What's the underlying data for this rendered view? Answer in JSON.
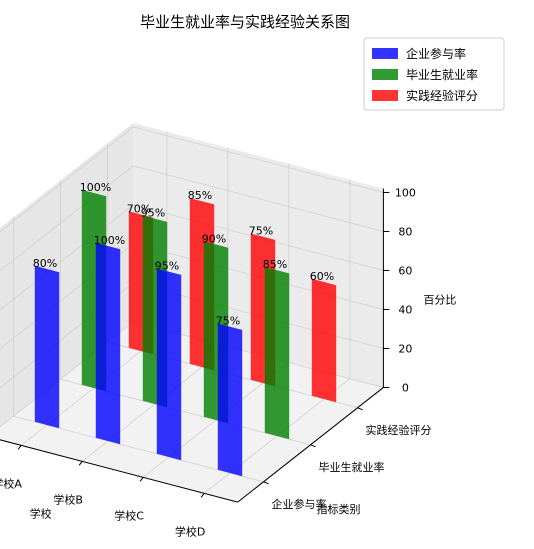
{
  "chart_data": {
    "type": "bar",
    "projection": "3d",
    "title": "毕业生就业率与实践经验关系图",
    "xlabel": "学校",
    "ylabel": "指标类别",
    "zlabel": "百分比",
    "categories": [
      "学校A",
      "学校B",
      "学校C",
      "学校D"
    ],
    "y_categories": [
      "企业参与率",
      "毕业生就业率",
      "实践经验评分"
    ],
    "zlim": [
      0,
      100
    ],
    "zticks": [
      0,
      20,
      40,
      60,
      80,
      100
    ],
    "grid": true,
    "legend_position": "top-right",
    "series": [
      {
        "name": "企业参与率",
        "color": "#0000ff",
        "values": [
          80,
          100,
          95,
          75
        ],
        "labels": [
          "80%",
          "100%",
          "95%",
          "75%"
        ]
      },
      {
        "name": "毕业生就业率",
        "color": "#008000",
        "values": [
          100,
          95,
          90,
          85
        ],
        "labels": [
          "100%",
          "95%",
          "90%",
          "85%"
        ]
      },
      {
        "name": "实践经验评分",
        "color": "#ff0000",
        "values": [
          70,
          85,
          75,
          60
        ],
        "labels": [
          "70%",
          "85%",
          "75%",
          "60%"
        ]
      }
    ]
  }
}
